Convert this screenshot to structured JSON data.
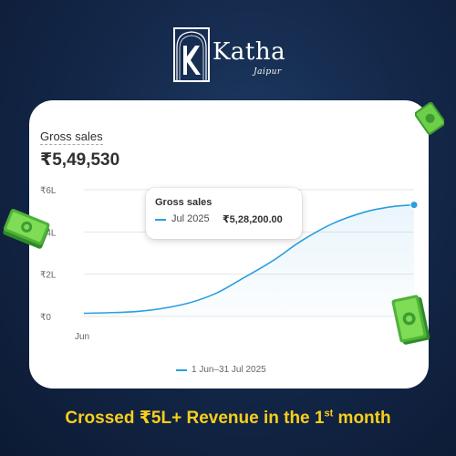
{
  "brand": {
    "name": "Katha",
    "sub": "Jaipur"
  },
  "card": {
    "title": "Gross sales",
    "total": "₹5,49,530"
  },
  "tooltip": {
    "title": "Gross sales",
    "date": "Jul 2025",
    "value": "₹5,28,200.00"
  },
  "legend": {
    "label": "1 Jun–31 Jul 2025"
  },
  "caption": {
    "prefix": "Crossed ₹5L+ Revenue in the 1",
    "sup": "st",
    "suffix": " month"
  },
  "colors": {
    "line": "#2a9ee0",
    "accent": "#f8cf1a",
    "background": "#14284a"
  },
  "icons": [
    "money-stack-icon",
    "katha-logo-icon"
  ],
  "chart_data": {
    "type": "area",
    "title": "Gross sales",
    "xlabel": "",
    "ylabel": "",
    "x_tick_labels": [
      "Jun"
    ],
    "y_tick_labels": [
      "₹0",
      "₹2L",
      "₹4L",
      "₹6L"
    ],
    "y_ticks": [
      0,
      200000,
      400000,
      600000
    ],
    "ylim": [
      0,
      600000
    ],
    "x_range": [
      0,
      61
    ],
    "series": [
      {
        "name": "1 Jun–31 Jul 2025",
        "x": [
          0,
          10,
          18,
          24,
          29,
          35,
          40,
          46,
          52,
          57,
          61
        ],
        "values": [
          15000,
          24000,
          55000,
          105000,
          175000,
          265000,
          355000,
          440000,
          495000,
          520000,
          528200
        ]
      }
    ],
    "grid": true,
    "legend": "bottom"
  }
}
